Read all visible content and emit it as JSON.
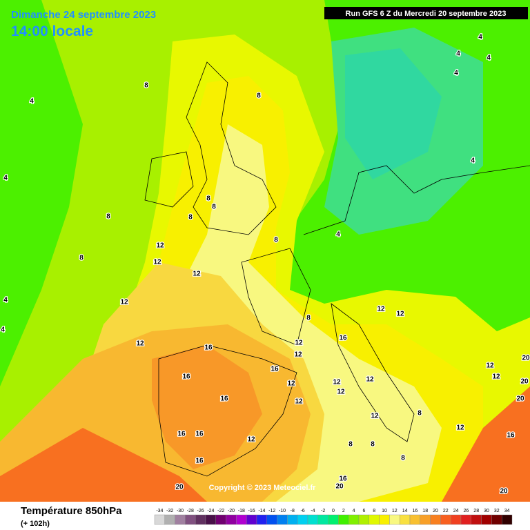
{
  "header": {
    "date": "Dimanche 24 septembre 2023",
    "time": "14:00 locale",
    "run": "Run GFS 6 Z du Mercredi 20 septembre 2023"
  },
  "footer": {
    "title": "Température 850hPa",
    "subtitle": "(+ 102h)",
    "copyright": "Copyright © 2023 Meteociel.fr"
  },
  "legend": {
    "values": [
      -34,
      -32,
      -30,
      -28,
      -26,
      -24,
      -22,
      -20,
      -18,
      -16,
      -14,
      -12,
      -10,
      -8,
      -6,
      -4,
      -2,
      0,
      2,
      4,
      6,
      8,
      10,
      12,
      14,
      16,
      18,
      20,
      22,
      24,
      26,
      28,
      30,
      32,
      34
    ],
    "colors": [
      "#d8d8d8",
      "#b0b0b0",
      "#a080a0",
      "#805080",
      "#603060",
      "#481048",
      "#700070",
      "#9000a0",
      "#b000d0",
      "#6000d0",
      "#2020f0",
      "#0050f0",
      "#0080f0",
      "#00b0f0",
      "#00d0f0",
      "#00e0d0",
      "#00e8a0",
      "#00f070",
      "#40f000",
      "#80f000",
      "#b0f000",
      "#e0f800",
      "#f8f000",
      "#f8f880",
      "#f8e040",
      "#f8c030",
      "#f8a028",
      "#f88020",
      "#f86020",
      "#f04020",
      "#e02020",
      "#c01010",
      "#a00000",
      "#700000",
      "#300000"
    ]
  },
  "contour_labels": [
    4,
    4,
    4,
    4,
    8,
    8,
    8,
    8,
    8,
    8,
    8,
    8,
    12,
    12,
    12,
    12,
    12,
    16,
    16,
    16,
    16,
    12,
    12,
    12,
    16,
    16,
    12,
    16,
    20,
    16,
    20,
    8,
    16,
    12,
    12,
    12,
    12,
    12,
    12,
    12,
    8,
    12,
    8,
    8,
    8,
    12,
    12,
    20,
    20,
    16,
    20,
    4,
    4,
    4,
    4,
    4,
    4,
    20
  ]
}
